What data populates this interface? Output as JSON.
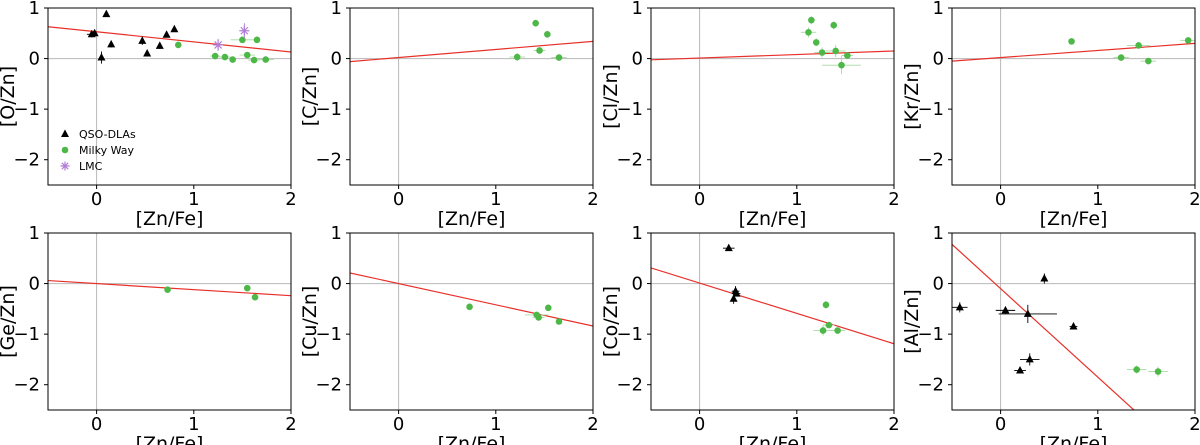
{
  "colors": {
    "qso": "#000000",
    "mw": "#4db848",
    "mw_err": "#a6dba0",
    "lmc": "#b07ed6",
    "fit": "#e8302a",
    "zero": "#b8b8b8"
  },
  "legend": {
    "entries": [
      {
        "label": "QSO-DLAs",
        "marker": "triangle",
        "color": "#000000"
      },
      {
        "label": "Milky Way",
        "marker": "circle",
        "color": "#4db848"
      },
      {
        "label": "LMC",
        "marker": "star",
        "color": "#b07ed6"
      }
    ]
  },
  "chart_data": [
    {
      "type": "scatter",
      "xlabel": "[Zn/Fe]",
      "ylabel": "[O/Zn]",
      "xlim": [
        -0.5,
        2.0
      ],
      "ylim": [
        -2.5,
        1.0
      ],
      "xticks": [
        "0",
        "1",
        "2"
      ],
      "yticks": [
        "1",
        "0",
        "−1",
        "−2"
      ],
      "fit": {
        "slope": -0.2,
        "intercept": 0.53
      },
      "series": [
        {
          "name": "QSO-DLAs",
          "marker": "triangle",
          "points": [
            {
              "x": -0.05,
              "y": 0.48,
              "ex": 0.05,
              "ey": 0.06
            },
            {
              "x": -0.02,
              "y": 0.5
            },
            {
              "x": 0.05,
              "y": 0.02,
              "ey": 0.12
            },
            {
              "x": 0.1,
              "y": 0.88,
              "ey": 0.04
            },
            {
              "x": 0.15,
              "y": 0.28,
              "ey": 0.06
            },
            {
              "x": 0.47,
              "y": 0.35,
              "ey": 0.08
            },
            {
              "x": 0.52,
              "y": 0.1,
              "ey": 0.06
            },
            {
              "x": 0.65,
              "y": 0.25,
              "ey": 0.06
            },
            {
              "x": 0.72,
              "y": 0.47,
              "ey": 0.05
            },
            {
              "x": 0.8,
              "y": 0.58,
              "ey": 0.05
            }
          ]
        },
        {
          "name": "Milky Way",
          "marker": "circle",
          "points": [
            {
              "x": 0.84,
              "y": 0.27
            },
            {
              "x": 1.22,
              "y": 0.05,
              "ex": 0.05
            },
            {
              "x": 1.32,
              "y": 0.03,
              "ex": 0.06
            },
            {
              "x": 1.4,
              "y": -0.02
            },
            {
              "x": 1.5,
              "y": 0.37,
              "ex": 0.12
            },
            {
              "x": 1.55,
              "y": 0.07,
              "ex": 0.08
            },
            {
              "x": 1.62,
              "y": -0.03,
              "ex": 0.06
            },
            {
              "x": 1.65,
              "y": 0.37
            },
            {
              "x": 1.74,
              "y": -0.02,
              "ex": 0.08
            }
          ]
        },
        {
          "name": "LMC",
          "marker": "star",
          "points": [
            {
              "x": 1.25,
              "y": 0.27,
              "ey": 0.12
            },
            {
              "x": 1.52,
              "y": 0.55,
              "ey": 0.15
            }
          ]
        }
      ]
    },
    {
      "type": "scatter",
      "xlabel": "[Zn/Fe]",
      "ylabel": "[C/Zn]",
      "xlim": [
        -0.5,
        2.0
      ],
      "ylim": [
        -2.5,
        1.0
      ],
      "xticks": [
        "0",
        "1",
        "2"
      ],
      "yticks": [
        "1",
        "0",
        "−1",
        "−2"
      ],
      "fit": {
        "slope": 0.16,
        "intercept": 0.02
      },
      "series": [
        {
          "name": "Milky Way",
          "marker": "circle",
          "points": [
            {
              "x": 1.22,
              "y": 0.03,
              "ex": 0.08,
              "ey": 0.08
            },
            {
              "x": 1.41,
              "y": 0.7,
              "ey": 0.07
            },
            {
              "x": 1.45,
              "y": 0.16,
              "ex": 0.06
            },
            {
              "x": 1.53,
              "y": 0.48,
              "ey": 0.07
            },
            {
              "x": 1.65,
              "y": 0.02,
              "ex": 0.08
            }
          ]
        }
      ]
    },
    {
      "type": "scatter",
      "xlabel": "[Zn/Fe]",
      "ylabel": "[Cl/Zn]",
      "xlim": [
        -0.5,
        2.0
      ],
      "ylim": [
        -2.5,
        1.0
      ],
      "xticks": [
        "0",
        "1",
        "2"
      ],
      "yticks": [
        "1",
        "0",
        "−1",
        "−2"
      ],
      "fit": {
        "slope": 0.07,
        "intercept": 0.01
      },
      "series": [
        {
          "name": "Milky Way",
          "marker": "circle",
          "points": [
            {
              "x": 1.12,
              "y": 0.52,
              "ex": 0.08,
              "ey": 0.1
            },
            {
              "x": 1.15,
              "y": 0.76,
              "ey": 0.08
            },
            {
              "x": 1.2,
              "y": 0.32,
              "ey": 0.08
            },
            {
              "x": 1.26,
              "y": 0.12,
              "ex": 0.08,
              "ey": 0.1
            },
            {
              "x": 1.38,
              "y": 0.66,
              "ey": 0.08
            },
            {
              "x": 1.4,
              "y": 0.15,
              "ex": 0.1,
              "ey": 0.12
            },
            {
              "x": 1.46,
              "y": -0.13,
              "ex": 0.2,
              "ey": 0.18
            },
            {
              "x": 1.52,
              "y": 0.06,
              "ex": 0.06
            }
          ]
        }
      ]
    },
    {
      "type": "scatter",
      "xlabel": "[Zn/Fe]",
      "ylabel": "[Kr/Zn]",
      "xlim": [
        -0.5,
        2.0
      ],
      "ylim": [
        -2.5,
        1.0
      ],
      "xticks": [
        "0",
        "1",
        "2"
      ],
      "yticks": [
        "1",
        "0",
        "−1",
        "−2"
      ],
      "fit": {
        "slope": 0.14,
        "intercept": 0.02
      },
      "series": [
        {
          "name": "Milky Way",
          "marker": "circle",
          "points": [
            {
              "x": 0.73,
              "y": 0.34
            },
            {
              "x": 1.24,
              "y": 0.02,
              "ex": 0.08
            },
            {
              "x": 1.42,
              "y": 0.26,
              "ex": 0.12,
              "ey": 0.07
            },
            {
              "x": 1.52,
              "y": -0.05,
              "ex": 0.08
            },
            {
              "x": 1.93,
              "y": 0.36,
              "ex": 0.08
            }
          ]
        }
      ]
    },
    {
      "type": "scatter",
      "xlabel": "[Zn/Fe]",
      "ylabel": "[Ge/Zn]",
      "xlim": [
        -0.5,
        2.0
      ],
      "ylim": [
        -2.5,
        1.0
      ],
      "xticks": [
        "0",
        "1",
        "2"
      ],
      "yticks": [
        "1",
        "0",
        "−1",
        "−2"
      ],
      "fit": {
        "slope": -0.12,
        "intercept": 0.0
      },
      "series": [
        {
          "name": "Milky Way",
          "marker": "circle",
          "points": [
            {
              "x": 0.73,
              "y": -0.12
            },
            {
              "x": 1.55,
              "y": -0.09,
              "ey": 0.06
            },
            {
              "x": 1.63,
              "y": -0.27,
              "ey": 0.06
            }
          ]
        }
      ]
    },
    {
      "type": "scatter",
      "xlabel": "[Zn/Fe]",
      "ylabel": "[Cu/Zn]",
      "xlim": [
        -0.5,
        2.0
      ],
      "ylim": [
        -2.5,
        1.0
      ],
      "xticks": [
        "0",
        "1",
        "2"
      ],
      "yticks": [
        "1",
        "0",
        "−1",
        "−2"
      ],
      "fit": {
        "slope": -0.42,
        "intercept": 0.0
      },
      "series": [
        {
          "name": "Milky Way",
          "marker": "circle",
          "points": [
            {
              "x": 0.73,
              "y": -0.46
            },
            {
              "x": 1.42,
              "y": -0.62,
              "ex": 0.12,
              "ey": 0.06
            },
            {
              "x": 1.44,
              "y": -0.67,
              "ex": 0.06
            },
            {
              "x": 1.54,
              "y": -0.48,
              "ey": 0.05
            },
            {
              "x": 1.65,
              "y": -0.75,
              "ey": 0.06
            }
          ]
        }
      ]
    },
    {
      "type": "scatter",
      "xlabel": "[Zn/Fe]",
      "ylabel": "[Co/Zn]",
      "xlim": [
        -0.5,
        2.0
      ],
      "ylim": [
        -2.5,
        1.0
      ],
      "xticks": [
        "0",
        "1",
        "2"
      ],
      "yticks": [
        "1",
        "0",
        "−1",
        "−2"
      ],
      "fit": {
        "slope": -0.6,
        "intercept": 0.01
      },
      "series": [
        {
          "name": "QSO-DLAs",
          "marker": "triangle",
          "points": [
            {
              "x": 0.3,
              "y": 0.7,
              "ex": 0.06
            },
            {
              "x": 0.35,
              "y": -0.3,
              "ey": 0.1
            },
            {
              "x": 0.37,
              "y": -0.15,
              "ex": 0.04,
              "ey": 0.1
            },
            {
              "x": 0.38,
              "y": -0.2,
              "ex": 0.04
            }
          ]
        },
        {
          "name": "Milky Way",
          "marker": "circle",
          "points": [
            {
              "x": 1.27,
              "y": -0.93,
              "ex": 0.1,
              "ey": 0.1
            },
            {
              "x": 1.3,
              "y": -0.42,
              "ey": 0.08
            },
            {
              "x": 1.33,
              "y": -0.82,
              "ex": 0.06
            },
            {
              "x": 1.42,
              "y": -0.93,
              "ex": 0.08,
              "ey": 0.06
            }
          ]
        }
      ]
    },
    {
      "type": "scatter",
      "xlabel": "[Zn/Fe]",
      "ylabel": "[Al/Zn]",
      "xlim": [
        -0.5,
        2.0
      ],
      "ylim": [
        -2.5,
        1.0
      ],
      "xticks": [
        "0",
        "1",
        "2"
      ],
      "yticks": [
        "1",
        "0",
        "−1",
        "−2"
      ],
      "fit": {
        "slope": -1.75,
        "intercept": -0.1
      },
      "series": [
        {
          "name": "QSO-DLAs",
          "marker": "triangle",
          "points": [
            {
              "x": -0.42,
              "y": -0.47,
              "ex": 0.08,
              "ey": 0.1
            },
            {
              "x": 0.05,
              "y": -0.53,
              "ex": 0.1,
              "ey": 0.06
            },
            {
              "x": 0.2,
              "y": -1.72,
              "ex": 0.06,
              "ey": 0.05
            },
            {
              "x": 0.28,
              "y": -0.6,
              "ex": 0.3,
              "ey": 0.18
            },
            {
              "x": 0.3,
              "y": -1.5,
              "ex": 0.1,
              "ey": 0.12
            },
            {
              "x": 0.45,
              "y": 0.1,
              "ey": 0.1
            },
            {
              "x": 0.75,
              "y": -0.85,
              "ex": 0.04
            }
          ]
        },
        {
          "name": "Milky Way",
          "marker": "circle",
          "points": [
            {
              "x": 1.4,
              "y": -1.7,
              "ex": 0.1,
              "ey": 0.08
            },
            {
              "x": 1.62,
              "y": -1.74,
              "ex": 0.1,
              "ey": 0.1
            }
          ]
        }
      ]
    }
  ]
}
